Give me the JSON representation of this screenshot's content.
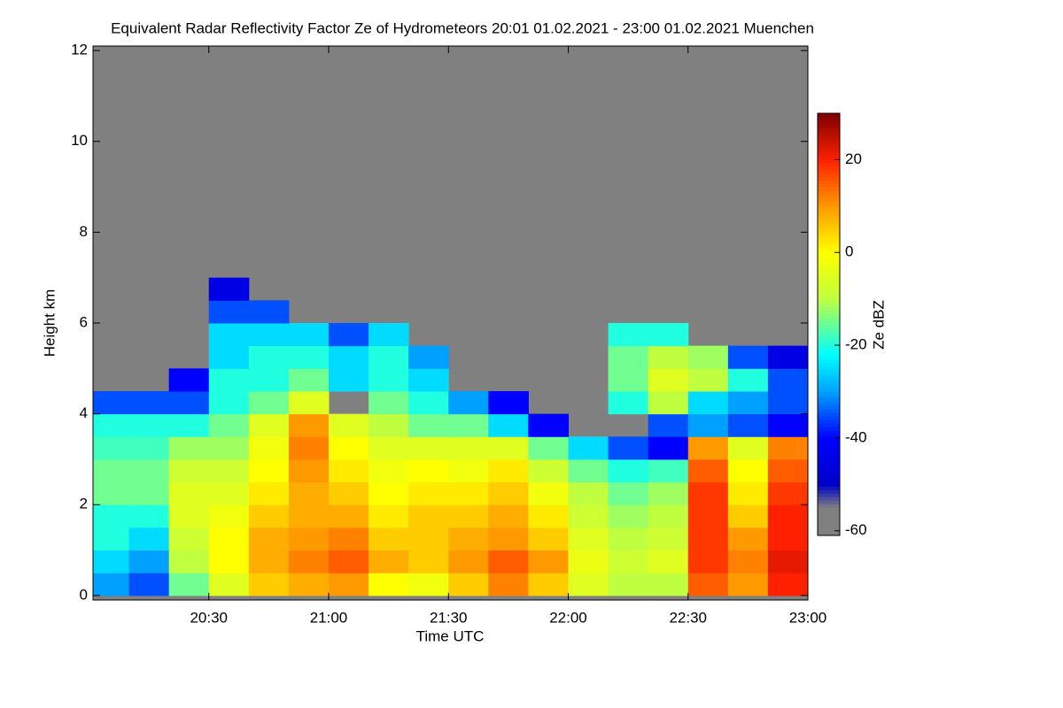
{
  "chart_data": {
    "type": "heatmap",
    "title": "Equivalent Radar Reflectivity Factor Ze of Hydrometeors   20:01 01.02.2021 - 23:00 01.02.2021 Muenchen",
    "x_label": "Time UTC",
    "y_label": "Height km",
    "colorbar_label": "Ze dBZ",
    "xlim": [
      "20:01",
      "23:00"
    ],
    "xticks": [
      "20:30",
      "21:00",
      "21:30",
      "22:00",
      "22:30",
      "23:00"
    ],
    "ylim": [
      -0.1,
      12.1
    ],
    "yticks": [
      0,
      2,
      4,
      6,
      8,
      10,
      12
    ],
    "clim": [
      -61,
      30
    ],
    "cticks": [
      20,
      0,
      -20,
      -40,
      -60
    ],
    "background": "#808080",
    "colorscale": [
      [
        -61,
        "#808080"
      ],
      [
        -55,
        "#808080"
      ],
      [
        -50,
        "#0000c8"
      ],
      [
        -40,
        "#0000ff"
      ],
      [
        -30,
        "#00a0ff"
      ],
      [
        -22,
        "#00ffff"
      ],
      [
        -10,
        "#c0ff40"
      ],
      [
        0,
        "#ffff00"
      ],
      [
        10,
        "#ff9900"
      ],
      [
        20,
        "#ff2000"
      ],
      [
        30,
        "#800000"
      ]
    ],
    "x": [
      "20:05",
      "20:15",
      "20:25",
      "20:35",
      "20:45",
      "20:55",
      "21:05",
      "21:15",
      "21:25",
      "21:35",
      "21:45",
      "21:55",
      "22:05",
      "22:15",
      "22:25",
      "22:35",
      "22:45",
      "22:55"
    ],
    "y": [
      0.25,
      0.75,
      1.25,
      1.75,
      2.25,
      2.75,
      3.25,
      3.75,
      4.25,
      4.75,
      5.25,
      5.75,
      6.25,
      6.75
    ],
    "z": [
      [
        -30,
        -35,
        -15,
        -5,
        5,
        8,
        10,
        0,
        -2,
        5,
        12,
        5,
        -5,
        -10,
        -10,
        15,
        10,
        20
      ],
      [
        -25,
        -30,
        -10,
        0,
        8,
        12,
        15,
        8,
        5,
        10,
        15,
        10,
        -3,
        -8,
        -5,
        18,
        12,
        22
      ],
      [
        -20,
        -25,
        -8,
        0,
        8,
        10,
        12,
        5,
        5,
        8,
        10,
        5,
        -5,
        -10,
        -8,
        18,
        10,
        20
      ],
      [
        -20,
        -20,
        -5,
        -2,
        5,
        8,
        8,
        2,
        5,
        5,
        8,
        2,
        -8,
        -12,
        -10,
        18,
        5,
        20
      ],
      [
        -15,
        -15,
        -5,
        -5,
        2,
        8,
        5,
        0,
        2,
        2,
        5,
        -2,
        -10,
        -15,
        -12,
        18,
        2,
        18
      ],
      [
        -15,
        -15,
        -8,
        -8,
        0,
        10,
        2,
        -2,
        0,
        -2,
        2,
        -8,
        -15,
        -20,
        -18,
        15,
        0,
        15
      ],
      [
        -18,
        -18,
        -12,
        -12,
        -2,
        12,
        0,
        -5,
        -5,
        -5,
        -5,
        -15,
        -25,
        -35,
        -40,
        10,
        -5,
        12
      ],
      [
        -20,
        -20,
        -20,
        -15,
        -5,
        10,
        -5,
        -10,
        -15,
        -15,
        -25,
        -40,
        null,
        null,
        -35,
        -30,
        -35,
        -40
      ],
      [
        -35,
        -35,
        -35,
        -20,
        -15,
        -5,
        null,
        -15,
        -20,
        -30,
        -40,
        null,
        null,
        -20,
        -10,
        -25,
        -30,
        -35
      ],
      [
        null,
        null,
        -40,
        -20,
        -20,
        -15,
        -25,
        -20,
        -25,
        null,
        null,
        null,
        null,
        -15,
        -5,
        -10,
        -20,
        -35
      ],
      [
        null,
        null,
        null,
        -25,
        -20,
        -20,
        -25,
        -20,
        -30,
        null,
        null,
        null,
        null,
        -15,
        -10,
        -12,
        -35,
        -45
      ],
      [
        null,
        null,
        null,
        -25,
        -25,
        -25,
        -35,
        -25,
        null,
        null,
        null,
        null,
        null,
        -20,
        -20,
        null,
        null,
        null
      ],
      [
        null,
        null,
        null,
        -35,
        -35,
        null,
        null,
        null,
        null,
        null,
        null,
        null,
        null,
        null,
        null,
        null,
        null,
        null
      ],
      [
        null,
        null,
        null,
        -45,
        null,
        null,
        null,
        null,
        null,
        null,
        null,
        null,
        null,
        null,
        null,
        null,
        null,
        null
      ]
    ]
  }
}
